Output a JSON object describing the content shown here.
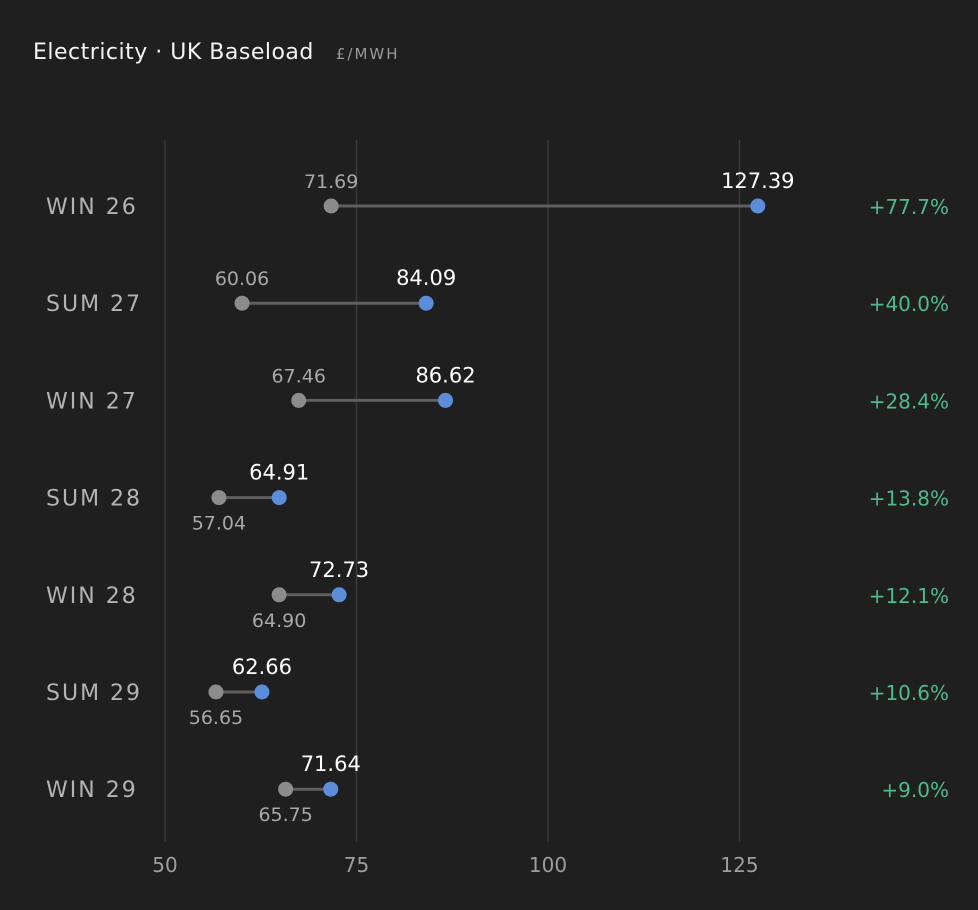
{
  "header": {
    "title": "Electricity · UK Baseload",
    "unit": "£/MWH"
  },
  "chart_data": {
    "type": "dumbbell",
    "title": "Electricity · UK Baseload",
    "unit": "£/MWH",
    "xlim": [
      50,
      135
    ],
    "xticks": [
      50,
      75,
      100,
      125
    ],
    "grid": true,
    "colors": {
      "start": "#8c8c8c",
      "end": "#5b8dd9",
      "connector": "#5f5f5f",
      "grid": "#3a3a3a",
      "change": "#4fba8c"
    },
    "categories": [
      "WIN 26",
      "SUM 27",
      "WIN 27",
      "SUM 28",
      "WIN 28",
      "SUM 29",
      "WIN 29"
    ],
    "series": [
      {
        "values": [
          71.69,
          60.06,
          67.46,
          57.04,
          64.9,
          56.65,
          65.75
        ]
      },
      {
        "values": [
          127.39,
          84.09,
          86.62,
          64.91,
          72.73,
          62.66,
          71.64
        ]
      }
    ],
    "start_labels": [
      "71.69",
      "60.06",
      "67.46",
      "57.04",
      "64.90",
      "56.65",
      "65.75"
    ],
    "end_labels": [
      "127.39",
      "84.09",
      "86.62",
      "64.91",
      "72.73",
      "62.66",
      "71.64"
    ],
    "changes": [
      "+77.7%",
      "+40.0%",
      "+28.4%",
      "+13.8%",
      "+12.1%",
      "+10.6%",
      "+9.0%"
    ]
  }
}
